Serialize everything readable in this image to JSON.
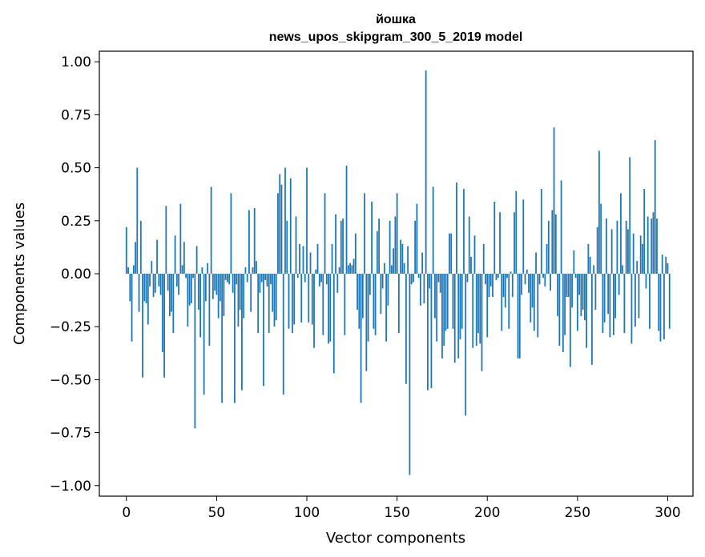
{
  "chart_data": {
    "type": "bar",
    "title": "йошка",
    "subtitle": "news_upos_skipgram_300_5_2019 model",
    "xlabel": "Vector components",
    "ylabel": "Components values",
    "xlim": [
      -15,
      314
    ],
    "ylim": [
      -1.05,
      1.05
    ],
    "xticks": [
      0,
      50,
      100,
      150,
      200,
      250,
      300
    ],
    "yticks": [
      1.0,
      0.75,
      0.5,
      0.25,
      0.0,
      -0.25,
      -0.5,
      -0.75,
      -1.0
    ],
    "ytick_labels": [
      "1.00",
      "0.75",
      "0.50",
      "0.25",
      "0.00",
      "−0.25",
      "−0.50",
      "−0.75",
      "−1.00"
    ],
    "color": "#1f77b4",
    "values": [
      0.22,
      0.03,
      -0.13,
      -0.32,
      0.04,
      0.15,
      0.5,
      -0.18,
      0.25,
      -0.49,
      -0.13,
      -0.14,
      -0.24,
      -0.06,
      0.06,
      -0.11,
      -0.09,
      0.16,
      -0.06,
      -0.1,
      -0.37,
      -0.49,
      0.32,
      -0.08,
      -0.2,
      -0.18,
      -0.28,
      0.18,
      -0.06,
      -0.1,
      0.33,
      0.04,
      0.15,
      -0.02,
      -0.25,
      -0.15,
      -0.14,
      -0.02,
      -0.73,
      0.13,
      -0.17,
      -0.3,
      0.03,
      -0.57,
      -0.13,
      0.05,
      -0.34,
      0.41,
      -0.12,
      -0.08,
      -0.1,
      -0.21,
      -0.13,
      -0.61,
      -0.2,
      -0.03,
      -0.04,
      -0.05,
      0.38,
      -0.09,
      -0.61,
      -0.05,
      -0.25,
      -0.17,
      -0.55,
      -0.21,
      0.03,
      -0.04,
      0.3,
      -0.18,
      0.03,
      0.31,
      0.06,
      -0.28,
      -0.09,
      -0.04,
      -0.53,
      -0.03,
      -0.06,
      -0.28,
      -0.05,
      -0.18,
      -0.25,
      -0.22,
      0.38,
      0.47,
      0.42,
      -0.57,
      0.5,
      0.25,
      -0.26,
      0.45,
      -0.28,
      -0.24,
      0.27,
      -0.02,
      0.14,
      -0.23,
      0.13,
      -0.04,
      0.5,
      -0.23,
      0.1,
      -0.24,
      -0.35,
      0.02,
      0.14,
      -0.06,
      -0.04,
      -0.29,
      0.38,
      -0.05,
      -0.33,
      -0.32,
      0.14,
      -0.47,
      0.28,
      -0.09,
      0.03,
      0.25,
      0.26,
      -0.29,
      0.51,
      0.04,
      0.05,
      0.04,
      0.07,
      0.19,
      -0.17,
      -0.26,
      -0.61,
      -0.21,
      0.38,
      -0.46,
      -0.32,
      -0.1,
      0.34,
      -0.26,
      -0.29,
      0.2,
      0.26,
      -0.19,
      -0.07,
      0.05,
      -0.32,
      -0.15,
      0.25,
      0.04,
      0.12,
      0.27,
      0.38,
      -0.28,
      0.16,
      0.14,
      0.05,
      -0.52,
      0.13,
      -0.95,
      -0.05,
      -0.04,
      0.25,
      0.33,
      -0.02,
      -0.15,
      0.1,
      -0.14,
      0.96,
      -0.55,
      -0.07,
      -0.54,
      0.41,
      -0.21,
      -0.32,
      -0.04,
      -0.09,
      -0.4,
      -0.34,
      -0.27,
      -0.26,
      0.19,
      0.19,
      -0.26,
      -0.42,
      0.43,
      -0.4,
      -0.31,
      -0.26,
      0.4,
      -0.67,
      -0.04,
      0.27,
      0.08,
      -0.35,
      0.18,
      -0.34,
      -0.28,
      -0.33,
      -0.46,
      0.14,
      -0.05,
      -0.3,
      -0.11,
      -0.06,
      -0.11,
      0.34,
      -0.03,
      -0.02,
      0.29,
      -0.27,
      -0.11,
      -0.16,
      -0.02,
      -0.26,
      0.01,
      -0.11,
      0.29,
      0.39,
      -0.4,
      -0.4,
      -0.1,
      0.35,
      -0.05,
      0.02,
      -0.09,
      -0.23,
      -0.16,
      -0.27,
      0.1,
      -0.3,
      -0.05,
      0.4,
      -0.02,
      -0.06,
      0.14,
      0.25,
      -0.08,
      0.3,
      0.69,
      0.28,
      -0.2,
      -0.34,
      0.44,
      -0.37,
      -0.29,
      -0.11,
      -0.11,
      -0.44,
      -0.16,
      0.11,
      -0.02,
      -0.27,
      -0.1,
      -0.2,
      -0.17,
      -0.22,
      -0.35,
      0.14,
      0.08,
      -0.43,
      0.04,
      -0.17,
      0.22,
      0.58,
      0.33,
      -0.28,
      -0.23,
      0.26,
      -0.19,
      -0.3,
      0.21,
      -0.29,
      -0.21,
      0.25,
      -0.1,
      0.38,
      0.04,
      -0.28,
      0.25,
      0.21,
      0.55,
      -0.33,
      0.19,
      -0.25,
      0.06,
      -0.21,
      0.18,
      0.14,
      0.4,
      -0.07,
      0.27,
      -0.26,
      0.26,
      0.29,
      0.63,
      0.26,
      -0.27,
      -0.32,
      0.09,
      -0.31,
      0.08,
      0.05,
      -0.26
    ]
  }
}
